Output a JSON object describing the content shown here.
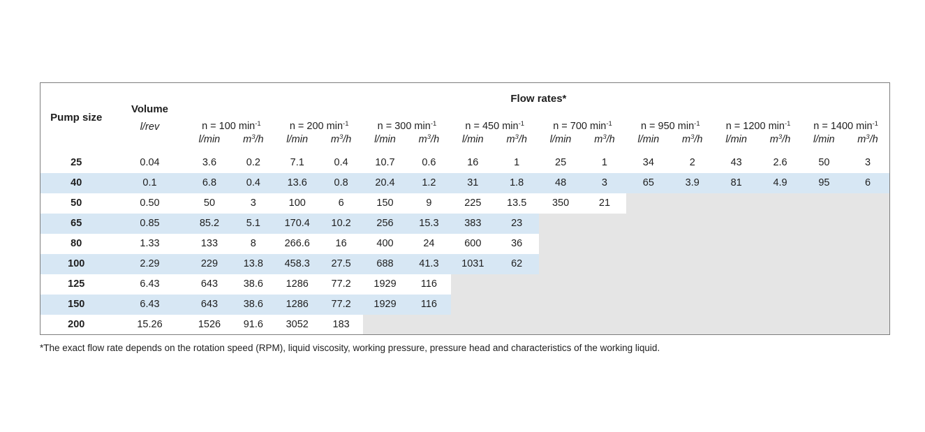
{
  "table": {
    "header": {
      "pump_size_label": "Pump size",
      "volume_label": "Volume",
      "volume_unit": "l/rev",
      "flow_rates_label": "Flow rates*",
      "speeds": [
        {
          "base": "n = 100 min",
          "sup": "-1"
        },
        {
          "base": "n = 200 min",
          "sup": "-1"
        },
        {
          "base": "n = 300 min",
          "sup": "-1"
        },
        {
          "base": "n = 450 min",
          "sup": "-1"
        },
        {
          "base": "n = 700 min",
          "sup": "-1"
        },
        {
          "base": "n = 950 min",
          "sup": "-1"
        },
        {
          "base": "n = 1200 min",
          "sup": "-1"
        },
        {
          "base": "n = 1400 min",
          "sup": "-1"
        }
      ],
      "flow_unit_lmin": "l/min",
      "flow_unit_m3h": {
        "base": "m",
        "sup": "3",
        "rest": "/h"
      }
    },
    "rows": [
      {
        "size": "25",
        "volume": "0.04",
        "flows": [
          [
            "3.6",
            "0.2"
          ],
          [
            "7.1",
            "0.4"
          ],
          [
            "10.7",
            "0.6"
          ],
          [
            "16",
            "1"
          ],
          [
            "25",
            "1"
          ],
          [
            "34",
            "2"
          ],
          [
            "43",
            "2.6"
          ],
          [
            "50",
            "3"
          ]
        ]
      },
      {
        "size": "40",
        "volume": "0.1",
        "flows": [
          [
            "6.8",
            "0.4"
          ],
          [
            "13.6",
            "0.8"
          ],
          [
            "20.4",
            "1.2"
          ],
          [
            "31",
            "1.8"
          ],
          [
            "48",
            "3"
          ],
          [
            "65",
            "3.9"
          ],
          [
            "81",
            "4.9"
          ],
          [
            "95",
            "6"
          ]
        ]
      },
      {
        "size": "50",
        "volume": "0.50",
        "flows": [
          [
            "50",
            "3"
          ],
          [
            "100",
            "6"
          ],
          [
            "150",
            "9"
          ],
          [
            "225",
            "13.5"
          ],
          [
            "350",
            "21"
          ],
          null,
          null,
          null
        ]
      },
      {
        "size": "65",
        "volume": "0.85",
        "flows": [
          [
            "85.2",
            "5.1"
          ],
          [
            "170.4",
            "10.2"
          ],
          [
            "256",
            "15.3"
          ],
          [
            "383",
            "23"
          ],
          null,
          null,
          null,
          null
        ]
      },
      {
        "size": "80",
        "volume": "1.33",
        "flows": [
          [
            "133",
            "8"
          ],
          [
            "266.6",
            "16"
          ],
          [
            "400",
            "24"
          ],
          [
            "600",
            "36"
          ],
          null,
          null,
          null,
          null
        ]
      },
      {
        "size": "100",
        "volume": "2.29",
        "flows": [
          [
            "229",
            "13.8"
          ],
          [
            "458.3",
            "27.5"
          ],
          [
            "688",
            "41.3"
          ],
          [
            "1031",
            "62"
          ],
          null,
          null,
          null,
          null
        ]
      },
      {
        "size": "125",
        "volume": "6.43",
        "flows": [
          [
            "643",
            "38.6"
          ],
          [
            "1286",
            "77.2"
          ],
          [
            "1929",
            "116"
          ],
          null,
          null,
          null,
          null,
          null
        ]
      },
      {
        "size": "150",
        "volume": "6.43",
        "flows": [
          [
            "643",
            "38.6"
          ],
          [
            "1286",
            "77.2"
          ],
          [
            "1929",
            "116"
          ],
          null,
          null,
          null,
          null,
          null
        ]
      },
      {
        "size": "200",
        "volume": "15.26",
        "flows": [
          [
            "1526",
            "91.6"
          ],
          [
            "3052",
            "183"
          ],
          null,
          null,
          null,
          null,
          null,
          null
        ]
      }
    ]
  },
  "footnote": "*The exact flow rate depends on the rotation speed (RPM), liquid viscosity, working pressure, pressure head and characteristics of the working liquid.",
  "colors": {
    "row_alt_blue": "#d7e7f4",
    "empty_cell_gray": "#e5e5e5",
    "border_gray": "#7d7d7d",
    "text": "#1e1e1e"
  }
}
